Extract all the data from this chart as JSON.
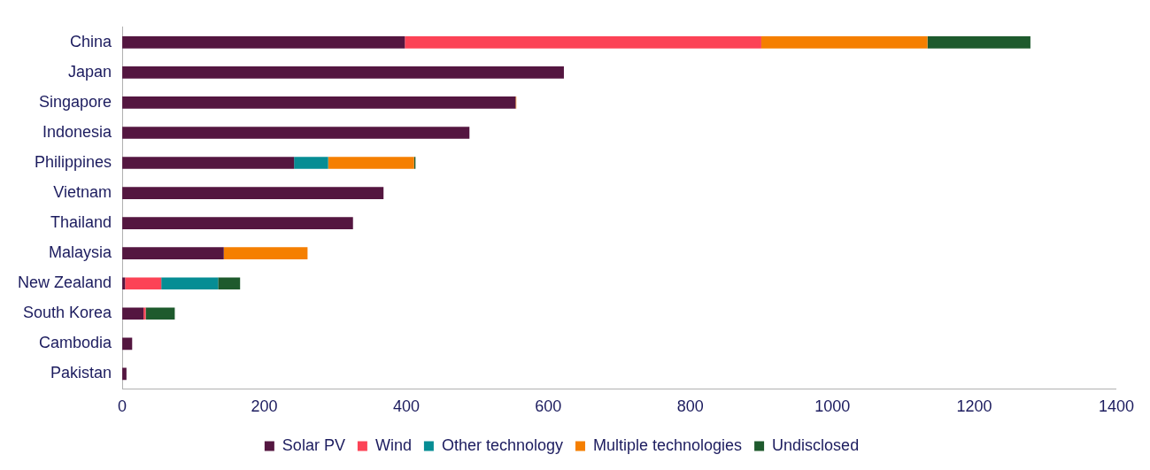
{
  "chart_data": {
    "type": "bar",
    "orientation": "horizontal",
    "stacked": true,
    "categories": [
      "China",
      "Japan",
      "Singapore",
      "Indonesia",
      "Philippines",
      "Vietnam",
      "Thailand",
      "Malaysia",
      "New Zealand",
      "South Korea",
      "Cambodia",
      "Pakistan"
    ],
    "series": [
      {
        "name": "Solar PV",
        "color": "#541640",
        "values": [
          398,
          622,
          554,
          489,
          242,
          368,
          325,
          143,
          4,
          30,
          14,
          6
        ]
      },
      {
        "name": "Wind",
        "color": "#fc4356",
        "values": [
          502,
          null,
          null,
          null,
          null,
          null,
          null,
          null,
          51,
          3,
          null,
          null
        ]
      },
      {
        "name": "Other technology",
        "color": "#068d94",
        "values": [
          null,
          null,
          null,
          null,
          48,
          null,
          null,
          null,
          80,
          null,
          null,
          null
        ]
      },
      {
        "name": "Multiple technologies",
        "color": "#f57f00",
        "values": [
          234,
          null,
          1,
          null,
          121,
          null,
          null,
          118,
          null,
          null,
          null,
          null
        ]
      },
      {
        "name": "Undisclosed",
        "color": "#1e5a2d",
        "values": [
          145,
          null,
          null,
          null,
          2,
          null,
          null,
          null,
          31,
          41,
          null,
          null
        ]
      }
    ],
    "xlim": [
      0,
      1400
    ],
    "xticks": [
      0,
      200,
      400,
      600,
      800,
      1000,
      1200,
      1400
    ],
    "grid": false,
    "legend": "bottom"
  }
}
